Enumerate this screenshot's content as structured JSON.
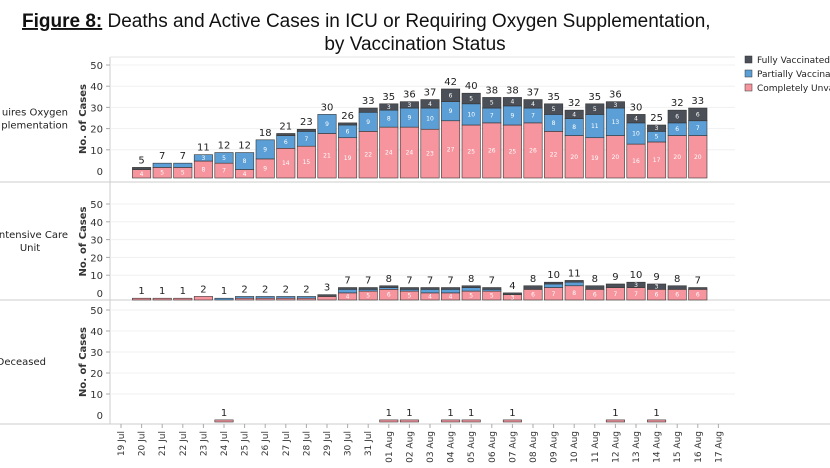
{
  "title": {
    "figure_label": "Figure 8:",
    "line1": " Deaths and Active Cases in ICU or Requiring Oxygen Supplementation,",
    "line2": "by Vaccination Status"
  },
  "legend": [
    {
      "label": "Fully Vaccinated",
      "color": "#4b5058"
    },
    {
      "label": "Partially Vaccinated",
      "color": "#5b9fd6"
    },
    {
      "label": "Completely Unvaccinated",
      "color": "#f6959e"
    }
  ],
  "chart_data": {
    "type": "bar",
    "stacked": true,
    "ylabel": "No. of Cases",
    "ylim": [
      0,
      50
    ],
    "yticks": [
      0,
      10,
      20,
      30,
      40,
      50
    ],
    "categories": [
      "19 Jul",
      "20 Jul",
      "21 Jul",
      "22 Jul",
      "23 Jul",
      "24 Jul",
      "25 Jul",
      "26 Jul",
      "27 Jul",
      "28 Jul",
      "29 Jul",
      "30 Jul",
      "31 Jul",
      "01 Aug",
      "02 Aug",
      "03 Aug",
      "04 Aug",
      "05 Aug",
      "06 Aug",
      "07 Aug",
      "08 Aug",
      "09 Aug",
      "10 Aug",
      "11 Aug",
      "12 Aug",
      "13 Aug",
      "14 Aug",
      "15 Aug",
      "16 Aug",
      "17 Aug"
    ],
    "panels": [
      {
        "row_label": [
          "uires Oxygen",
          "plementation"
        ],
        "series": [
          {
            "name": "Completely Unvaccinated",
            "values": [
              0,
              4,
              5,
              5,
              8,
              7,
              4,
              9,
              14,
              15,
              21,
              19,
              22,
              24,
              24,
              23,
              27,
              25,
              26,
              25,
              26,
              22,
              20,
              19,
              20,
              16,
              17,
              20,
              20,
              0
            ]
          },
          {
            "name": "Partially Vaccinated",
            "values": [
              0,
              0,
              2,
              2,
              3,
              5,
              8,
              9,
              6,
              7,
              9,
              6,
              9,
              8,
              9,
              10,
              9,
              10,
              7,
              9,
              7,
              8,
              8,
              11,
              13,
              10,
              5,
              6,
              7,
              0
            ]
          },
          {
            "name": "Fully Vaccinated",
            "values": [
              0,
              1,
              0,
              0,
              0,
              0,
              0,
              0,
              1,
              1,
              0,
              1,
              2,
              3,
              3,
              4,
              6,
              5,
              5,
              4,
              4,
              5,
              4,
              5,
              3,
              4,
              3,
              6,
              6,
              0
            ]
          }
        ]
      },
      {
        "row_label": [
          "ntensive Care",
          "Unit"
        ],
        "series": [
          {
            "name": "Completely Unvaccinated",
            "values": [
              0,
              1,
              1,
              1,
              2,
              0,
              1,
              1,
              1,
              1,
              2,
              4,
              5,
              6,
              5,
              4,
              4,
              5,
              5,
              3,
              6,
              7,
              8,
              6,
              7,
              7,
              6,
              6,
              6,
              0
            ]
          },
          {
            "name": "Partially Vaccinated",
            "values": [
              0,
              0,
              0,
              0,
              0,
              1,
              1,
              1,
              1,
              1,
              0,
              2,
              1,
              1,
              1,
              2,
              2,
              2,
              1,
              0,
              0,
              2,
              2,
              0,
              0,
              0,
              0,
              0,
              0,
              0
            ]
          },
          {
            "name": "Fully Vaccinated",
            "values": [
              0,
              0,
              0,
              0,
              0,
              0,
              0,
              0,
              0,
              0,
              1,
              1,
              1,
              1,
              1,
              1,
              1,
              1,
              1,
              1,
              2,
              1,
              1,
              2,
              2,
              3,
              3,
              2,
              1,
              0
            ]
          }
        ]
      },
      {
        "row_label": [
          "Deceased"
        ],
        "series": [
          {
            "name": "Completely Unvaccinated",
            "values": [
              0,
              0,
              0,
              0,
              0,
              1,
              0,
              0,
              0,
              0,
              0,
              0,
              0,
              1,
              1,
              0,
              1,
              1,
              0,
              1,
              0,
              0,
              0,
              0,
              1,
              0,
              1,
              0,
              0,
              0
            ]
          },
          {
            "name": "Partially Vaccinated",
            "values": [
              0,
              0,
              0,
              0,
              0,
              0,
              0,
              0,
              0,
              0,
              0,
              0,
              0,
              0,
              0,
              0,
              0,
              0,
              0,
              0,
              0,
              0,
              0,
              0,
              0,
              0,
              0,
              0,
              0,
              0
            ]
          },
          {
            "name": "Fully Vaccinated",
            "values": [
              0,
              0,
              0,
              0,
              0,
              0,
              0,
              0,
              0,
              0,
              0,
              0,
              0,
              0,
              0,
              0,
              0,
              0,
              0,
              0,
              0,
              0,
              0,
              0,
              0,
              0,
              0,
              0,
              0,
              0
            ]
          }
        ]
      }
    ]
  }
}
